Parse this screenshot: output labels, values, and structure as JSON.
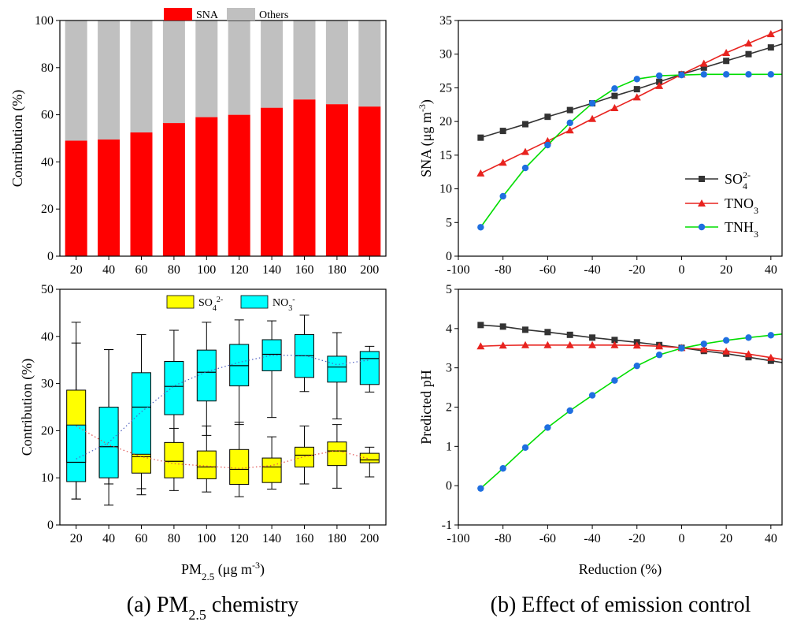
{
  "captions": {
    "a_prefix": "(a) PM",
    "a_sub": "2.5",
    "a_suffix": " chemistry",
    "b": "(b) Effect of emission control"
  },
  "colors": {
    "sna": "#ff0000",
    "others": "#c0c0c0",
    "so4_box": "#ffff00",
    "no3_box": "#00ffff",
    "so4": "#333333",
    "tno3": "#e8231f",
    "tnh3": "#00dd00",
    "tnh3_marker": "#1f6fe0"
  },
  "chart_data": [
    {
      "id": "a-top",
      "type": "bar",
      "stacked": true,
      "categories": [
        "20",
        "40",
        "60",
        "80",
        "100",
        "120",
        "140",
        "160",
        "180",
        "200"
      ],
      "series": [
        {
          "name": "SNA",
          "values": [
            49,
            49.5,
            52.5,
            56.5,
            59,
            60,
            63,
            66.5,
            64.5,
            63.5
          ]
        },
        {
          "name": "Others",
          "values": [
            51,
            50.5,
            47.5,
            43.5,
            41,
            40,
            37,
            33.5,
            35.5,
            36.5
          ]
        }
      ],
      "ylabel": "Contribution (%)",
      "ylim": [
        0,
        100
      ],
      "yticks": [
        "0",
        "20",
        "40",
        "60",
        "80",
        "100"
      ],
      "legend": "top-center"
    },
    {
      "id": "a-bottom",
      "type": "box",
      "categories": [
        "20",
        "40",
        "60",
        "80",
        "100",
        "120",
        "140",
        "160",
        "180",
        "200"
      ],
      "xlabel_prefix": "PM",
      "xlabel_sub": "2.5",
      "xlabel_suffix": " (μg m",
      "xlabel_sup": "-3",
      "xlabel_end": ")",
      "ylabel": "Contribution (%)",
      "ylim": [
        0,
        50
      ],
      "yticks": [
        "0",
        "10",
        "20",
        "30",
        "40",
        "50"
      ],
      "legend": "top-center",
      "series": [
        {
          "name": "SO",
          "sub": "4",
          "sup": "2-",
          "boxes": [
            {
              "whislo": 5.5,
              "q1": 13.3,
              "med": 21,
              "q3": 28.6,
              "whishi": 38.6
            },
            {
              "whislo": 8.7,
              "q1": 10.3,
              "med": 16.7,
              "q3": 22.2,
              "whishi": 37.2
            },
            {
              "whislo": 6.4,
              "q1": 11,
              "med": 14.5,
              "q3": 17,
              "whishi": 20.8
            },
            {
              "whislo": 7.3,
              "q1": 10,
              "med": 13.5,
              "q3": 17.5,
              "whishi": 20.5
            },
            {
              "whislo": 7,
              "q1": 9.8,
              "med": 12.3,
              "q3": 15.7,
              "whishi": 21
            },
            {
              "whislo": 6,
              "q1": 8.6,
              "med": 11.8,
              "q3": 16,
              "whishi": 21.8
            },
            {
              "whislo": 7.6,
              "q1": 9,
              "med": 12.3,
              "q3": 14.2,
              "whishi": 18.7
            },
            {
              "whislo": 8.7,
              "q1": 12.3,
              "med": 14.8,
              "q3": 16.5,
              "whishi": 21
            },
            {
              "whislo": 7.8,
              "q1": 12.6,
              "med": 15.7,
              "q3": 17.6,
              "whishi": 21.3
            },
            {
              "whislo": 10.2,
              "q1": 13.2,
              "med": 13.8,
              "q3": 15.2,
              "whishi": 16.5
            }
          ],
          "trend": [
            21,
            17,
            14.5,
            13,
            12.5,
            12,
            12.6,
            14.5,
            15.8,
            14
          ]
        },
        {
          "name": "NO",
          "sub": "3",
          "sup": "-",
          "boxes": [
            {
              "whislo": 5.5,
              "q1": 9.2,
              "med": 13.3,
              "q3": 21.2,
              "whishi": 43
            },
            {
              "whislo": 4.2,
              "q1": 10,
              "med": 16.6,
              "q3": 25,
              "whishi": 37.2
            },
            {
              "whislo": 7.7,
              "q1": 15,
              "med": 25,
              "q3": 32.3,
              "whishi": 40.4
            },
            {
              "whislo": 12,
              "q1": 23.4,
              "med": 29.4,
              "q3": 34.7,
              "whishi": 41.3
            },
            {
              "whislo": 19,
              "q1": 26.3,
              "med": 32.4,
              "q3": 37.1,
              "whishi": 43
            },
            {
              "whislo": 21.3,
              "q1": 29.5,
              "med": 33.8,
              "q3": 38.3,
              "whishi": 43.5
            },
            {
              "whislo": 22.8,
              "q1": 32.7,
              "med": 36.2,
              "q3": 39.3,
              "whishi": 43.3
            },
            {
              "whislo": 28.3,
              "q1": 31.3,
              "med": 35.9,
              "q3": 40.4,
              "whishi": 44.5
            },
            {
              "whislo": 22.5,
              "q1": 30.3,
              "med": 33.5,
              "q3": 35.8,
              "whishi": 40.8
            },
            {
              "whislo": 28.2,
              "q1": 29.8,
              "med": 35.3,
              "q3": 36.8,
              "whishi": 37.9
            }
          ],
          "trend": [
            14,
            17.5,
            24,
            29.5,
            32.5,
            34.5,
            36,
            36,
            34,
            35
          ]
        }
      ]
    },
    {
      "id": "b-top",
      "type": "line",
      "x": [
        -90,
        -80,
        -70,
        -60,
        -50,
        -40,
        -30,
        -20,
        -10,
        0,
        10,
        20,
        30,
        40
      ],
      "xlim": [
        -100,
        45
      ],
      "xticks": [
        "-100",
        "-80",
        "-60",
        "-40",
        "-20",
        "0",
        "20",
        "40"
      ],
      "ylim": [
        0,
        35
      ],
      "yticks": [
        "0",
        "5",
        "10",
        "15",
        "20",
        "25",
        "30",
        "35"
      ],
      "ylabel_prefix": "SNA (μg m",
      "ylabel_sup": "-3",
      "ylabel_end": ")",
      "legend": "center-right",
      "series": [
        {
          "name": "SO",
          "sub": "4",
          "sup": "2-",
          "marker": "square",
          "values": [
            17.6,
            18.6,
            19.6,
            20.7,
            21.7,
            22.7,
            23.8,
            24.8,
            25.9,
            27.0,
            28.0,
            29.0,
            30.0,
            31.0
          ]
        },
        {
          "name": "TNO",
          "sub": "3",
          "sup": "",
          "marker": "triangle",
          "values": [
            12.3,
            13.9,
            15.5,
            17.1,
            18.7,
            20.4,
            22.0,
            23.6,
            25.3,
            27.0,
            28.6,
            30.2,
            31.6,
            33.0
          ]
        },
        {
          "name": "TNH",
          "sub": "3",
          "sup": "",
          "marker": "circle",
          "values": [
            4.3,
            8.9,
            13.1,
            16.5,
            19.8,
            22.7,
            24.9,
            26.3,
            26.8,
            26.9,
            27.0,
            27.0,
            27.0,
            27.0
          ]
        }
      ]
    },
    {
      "id": "b-bottom",
      "type": "line",
      "x": [
        -90,
        -80,
        -70,
        -60,
        -50,
        -40,
        -30,
        -20,
        -10,
        0,
        10,
        20,
        30,
        40
      ],
      "xlim": [
        -100,
        45
      ],
      "xticks": [
        "-100",
        "-80",
        "-60",
        "-40",
        "-20",
        "0",
        "20",
        "40"
      ],
      "xlabel": "Reduction (%)",
      "ylim": [
        -1,
        5
      ],
      "yticks": [
        "-1",
        "0",
        "1",
        "2",
        "3",
        "4",
        "5"
      ],
      "ylabel": "Predicted pH",
      "series": [
        {
          "name": "SO4",
          "marker": "square",
          "values": [
            4.09,
            4.05,
            3.97,
            3.91,
            3.84,
            3.77,
            3.71,
            3.65,
            3.58,
            3.51,
            3.43,
            3.36,
            3.27,
            3.18
          ]
        },
        {
          "name": "TNO3",
          "marker": "triangle",
          "values": [
            3.55,
            3.57,
            3.58,
            3.58,
            3.58,
            3.58,
            3.58,
            3.57,
            3.55,
            3.51,
            3.47,
            3.42,
            3.35,
            3.26
          ]
        },
        {
          "name": "TNH3",
          "marker": "circle",
          "values": [
            -0.07,
            0.44,
            0.97,
            1.48,
            1.91,
            2.3,
            2.68,
            3.05,
            3.33,
            3.5,
            3.61,
            3.7,
            3.77,
            3.83
          ]
        }
      ]
    }
  ]
}
